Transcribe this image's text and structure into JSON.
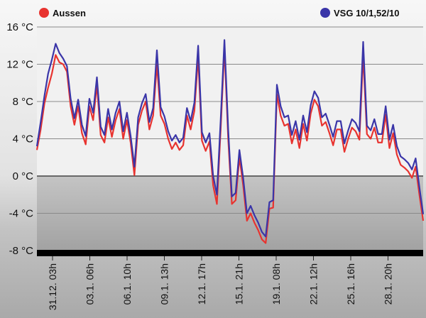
{
  "chart_data": {
    "type": "line",
    "ylim": [
      -8,
      16
    ],
    "yticks": [
      -8,
      -4,
      0,
      4,
      8,
      12,
      16
    ],
    "ytick_unit": "°C",
    "xtick_labels": [
      "31.12. 03h",
      "03.1. 06h",
      "06.1. 10h",
      "09.1. 13h",
      "12.1. 17h",
      "15.1. 21h",
      "19.1. 08h",
      "22.1. 12h",
      "25.1. 16h",
      "28.1. 20h"
    ],
    "grid": true,
    "legend": "top",
    "series": [
      {
        "name": "Aussen",
        "color": "#e8332f",
        "points": [
          [
            0,
            2.8
          ],
          [
            1,
            5.0
          ],
          [
            2,
            7.8
          ],
          [
            3,
            9.5
          ],
          [
            4,
            11.0
          ],
          [
            5,
            13.0
          ],
          [
            6,
            12.2
          ],
          [
            7,
            12.0
          ],
          [
            8,
            11.2
          ],
          [
            9,
            7.5
          ],
          [
            10,
            5.5
          ],
          [
            11,
            7.5
          ],
          [
            12,
            4.6
          ],
          [
            13,
            3.4
          ],
          [
            14,
            7.5
          ],
          [
            15,
            6.0
          ],
          [
            16,
            9.8
          ],
          [
            17,
            4.4
          ],
          [
            18,
            3.6
          ],
          [
            19,
            6.3
          ],
          [
            20,
            4.2
          ],
          [
            21,
            6.0
          ],
          [
            22,
            7.2
          ],
          [
            23,
            4.0
          ],
          [
            24,
            6.0
          ],
          [
            25,
            3.6
          ],
          [
            26,
            0.1
          ],
          [
            27,
            5.5
          ],
          [
            28,
            7.0
          ],
          [
            29,
            8.0
          ],
          [
            30,
            5.0
          ],
          [
            31,
            6.5
          ],
          [
            32,
            12.0
          ],
          [
            33,
            6.5
          ],
          [
            34,
            5.6
          ],
          [
            35,
            4.0
          ],
          [
            36,
            2.9
          ],
          [
            37,
            3.6
          ],
          [
            38,
            2.8
          ],
          [
            39,
            3.3
          ],
          [
            40,
            6.5
          ],
          [
            41,
            5.0
          ],
          [
            42,
            7.0
          ],
          [
            43,
            12.8
          ],
          [
            44,
            3.8
          ],
          [
            45,
            2.7
          ],
          [
            46,
            3.7
          ],
          [
            47,
            -1.0
          ],
          [
            48,
            -3.0
          ],
          [
            49,
            5.0
          ],
          [
            50,
            13.8
          ],
          [
            51,
            4.0
          ],
          [
            52,
            -3.0
          ],
          [
            53,
            -2.6
          ],
          [
            54,
            2.0
          ],
          [
            55,
            -1.0
          ],
          [
            56,
            -4.8
          ],
          [
            57,
            -4.0
          ],
          [
            58,
            -5.0
          ],
          [
            59,
            -5.8
          ],
          [
            60,
            -6.8
          ],
          [
            61,
            -7.2
          ],
          [
            62,
            -3.5
          ],
          [
            63,
            -3.4
          ],
          [
            64,
            8.8
          ],
          [
            65,
            6.5
          ],
          [
            66,
            5.4
          ],
          [
            67,
            5.6
          ],
          [
            68,
            3.5
          ],
          [
            69,
            5.0
          ],
          [
            70,
            3.0
          ],
          [
            71,
            5.6
          ],
          [
            72,
            3.8
          ],
          [
            73,
            6.7
          ],
          [
            74,
            8.2
          ],
          [
            75,
            7.5
          ],
          [
            76,
            5.4
          ],
          [
            77,
            5.8
          ],
          [
            78,
            4.6
          ],
          [
            79,
            3.3
          ],
          [
            80,
            5.0
          ],
          [
            81,
            5.0
          ],
          [
            82,
            2.6
          ],
          [
            83,
            4.0
          ],
          [
            84,
            5.2
          ],
          [
            85,
            4.8
          ],
          [
            86,
            3.9
          ],
          [
            87,
            13.0
          ],
          [
            88,
            4.5
          ],
          [
            89,
            4.0
          ],
          [
            90,
            5.2
          ],
          [
            91,
            3.6
          ],
          [
            92,
            3.6
          ],
          [
            93,
            6.6
          ],
          [
            94,
            3.0
          ],
          [
            95,
            4.6
          ],
          [
            96,
            2.3
          ],
          [
            97,
            1.2
          ],
          [
            98,
            0.9
          ],
          [
            99,
            0.5
          ],
          [
            100,
            -0.2
          ],
          [
            101,
            1.0
          ],
          [
            102,
            -2.0
          ],
          [
            103,
            -4.8
          ]
        ]
      },
      {
        "name": "VSG 10/1,52/10",
        "color": "#3a35a8",
        "points": [
          [
            0,
            3.2
          ],
          [
            1,
            5.8
          ],
          [
            2,
            8.6
          ],
          [
            3,
            11.0
          ],
          [
            4,
            12.5
          ],
          [
            5,
            14.2
          ],
          [
            6,
            13.2
          ],
          [
            7,
            12.6
          ],
          [
            8,
            11.8
          ],
          [
            9,
            8.3
          ],
          [
            10,
            6.2
          ],
          [
            11,
            8.2
          ],
          [
            12,
            5.5
          ],
          [
            13,
            4.3
          ],
          [
            14,
            8.3
          ],
          [
            15,
            6.8
          ],
          [
            16,
            10.6
          ],
          [
            17,
            5.3
          ],
          [
            18,
            4.4
          ],
          [
            19,
            7.2
          ],
          [
            20,
            5.0
          ],
          [
            21,
            6.8
          ],
          [
            22,
            8.0
          ],
          [
            23,
            4.8
          ],
          [
            24,
            6.8
          ],
          [
            25,
            4.3
          ],
          [
            26,
            1.0
          ],
          [
            27,
            6.3
          ],
          [
            28,
            7.8
          ],
          [
            29,
            8.8
          ],
          [
            30,
            5.8
          ],
          [
            31,
            7.3
          ],
          [
            32,
            13.5
          ],
          [
            33,
            7.4
          ],
          [
            34,
            6.4
          ],
          [
            35,
            4.8
          ],
          [
            36,
            3.8
          ],
          [
            37,
            4.4
          ],
          [
            38,
            3.6
          ],
          [
            39,
            4.1
          ],
          [
            40,
            7.3
          ],
          [
            41,
            5.9
          ],
          [
            42,
            7.9
          ],
          [
            43,
            14.0
          ],
          [
            44,
            4.7
          ],
          [
            45,
            3.6
          ],
          [
            46,
            4.6
          ],
          [
            47,
            0.0
          ],
          [
            48,
            -2.0
          ],
          [
            49,
            6.0
          ],
          [
            50,
            14.6
          ],
          [
            51,
            5.0
          ],
          [
            52,
            -2.2
          ],
          [
            53,
            -1.8
          ],
          [
            54,
            2.8
          ],
          [
            55,
            -0.2
          ],
          [
            56,
            -4.0
          ],
          [
            57,
            -3.2
          ],
          [
            58,
            -4.2
          ],
          [
            59,
            -5.0
          ],
          [
            60,
            -6.0
          ],
          [
            61,
            -6.5
          ],
          [
            62,
            -2.8
          ],
          [
            63,
            -2.6
          ],
          [
            64,
            9.8
          ],
          [
            65,
            7.5
          ],
          [
            66,
            6.3
          ],
          [
            67,
            6.5
          ],
          [
            68,
            4.4
          ],
          [
            69,
            5.9
          ],
          [
            70,
            3.9
          ],
          [
            71,
            6.5
          ],
          [
            72,
            4.7
          ],
          [
            73,
            7.6
          ],
          [
            74,
            9.1
          ],
          [
            75,
            8.4
          ],
          [
            76,
            6.3
          ],
          [
            77,
            6.7
          ],
          [
            78,
            5.5
          ],
          [
            79,
            4.2
          ],
          [
            80,
            5.9
          ],
          [
            81,
            5.9
          ],
          [
            82,
            3.5
          ],
          [
            83,
            4.9
          ],
          [
            84,
            6.1
          ],
          [
            85,
            5.7
          ],
          [
            86,
            4.8
          ],
          [
            87,
            14.4
          ],
          [
            88,
            5.4
          ],
          [
            89,
            4.9
          ],
          [
            90,
            6.1
          ],
          [
            91,
            4.5
          ],
          [
            92,
            4.5
          ],
          [
            93,
            7.5
          ],
          [
            94,
            3.9
          ],
          [
            95,
            5.5
          ],
          [
            96,
            3.2
          ],
          [
            97,
            2.1
          ],
          [
            98,
            1.8
          ],
          [
            99,
            1.4
          ],
          [
            100,
            0.7
          ],
          [
            101,
            1.9
          ],
          [
            102,
            -1.2
          ],
          [
            103,
            -4.1
          ]
        ]
      }
    ]
  }
}
